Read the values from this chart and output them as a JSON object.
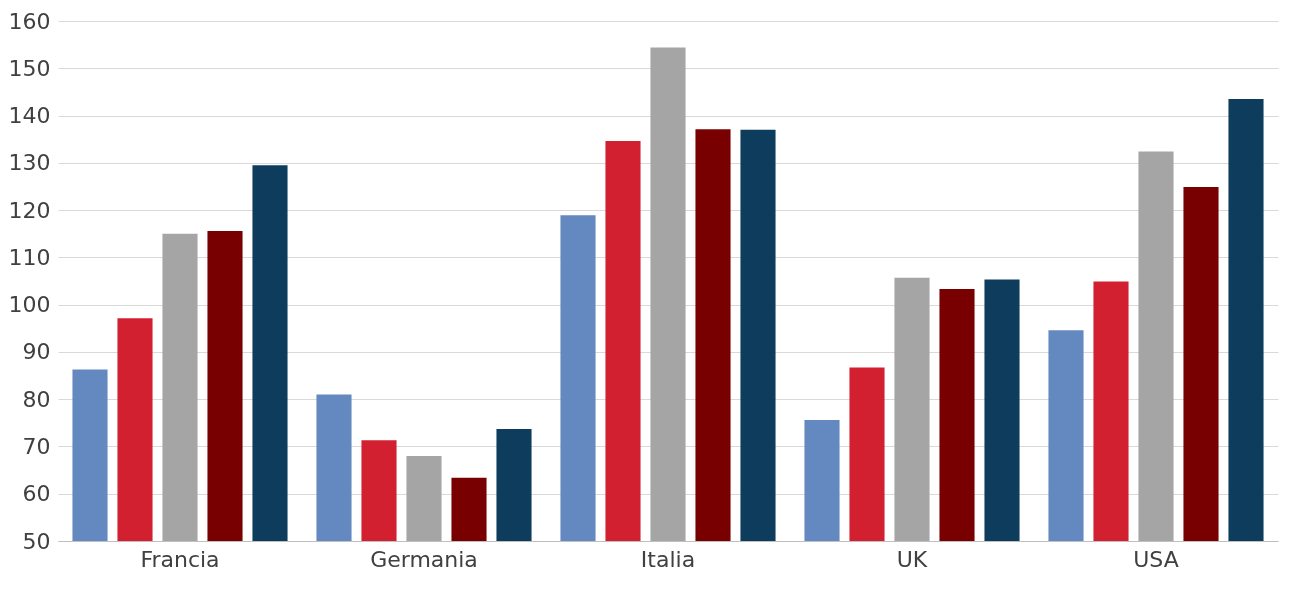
{
  "chart_data": {
    "type": "bar",
    "categories": [
      "Francia",
      "Germania",
      "Italia",
      "UK",
      "USA"
    ],
    "series": [
      {
        "color": "#6389c0",
        "values": [
          86.3,
          81,
          118.9,
          75.6,
          94.6
        ]
      },
      {
        "color": "#d22030",
        "values": [
          97.1,
          71.3,
          134.6,
          86.7,
          104.9
        ]
      },
      {
        "color": "#a5a5a5",
        "values": [
          115,
          68,
          154.4,
          105.7,
          132.4
        ]
      },
      {
        "color": "#780000",
        "values": [
          115.6,
          63.4,
          137.1,
          103.3,
          124.9
        ]
      },
      {
        "color": "#0d3c5c",
        "values": [
          129.5,
          73.7,
          137,
          105.3,
          143.5
        ]
      }
    ],
    "ylim": [
      50,
      160
    ],
    "yticks": [
      50,
      60,
      70,
      80,
      90,
      100,
      110,
      120,
      130,
      140,
      150,
      160
    ],
    "grid": "y"
  }
}
